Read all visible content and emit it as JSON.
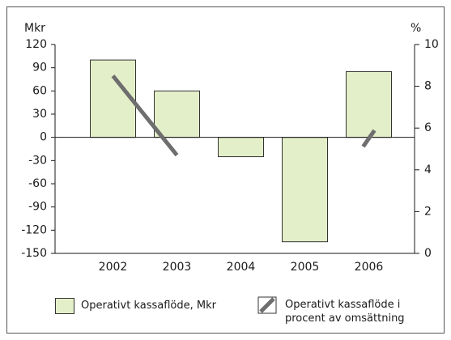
{
  "chart_data": {
    "type": "bar",
    "y_label": "Mkr",
    "y2_label": "%",
    "categories": [
      "2002",
      "2003",
      "2004",
      "2005",
      "2006"
    ],
    "series": [
      {
        "name": "Operativt kassaflöde, Mkr",
        "type": "bar",
        "color": "#e3efc8",
        "values": [
          100,
          60,
          -25,
          -135,
          85
        ]
      },
      {
        "name": "Operativt kassaflöde i procent av omsättning",
        "type": "line",
        "axis": "y2",
        "color": "#6e6e6e",
        "values": [
          8.5,
          4.7,
          null,
          null,
          5.5
        ]
      }
    ],
    "ylim": [
      -150,
      120
    ],
    "yticks": [
      -150,
      -120,
      -90,
      -60,
      -30,
      0,
      30,
      60,
      90,
      120
    ],
    "y2lim": [
      0,
      10
    ],
    "y2ticks": [
      0,
      2,
      4,
      6,
      8,
      10
    ],
    "grid": false
  }
}
